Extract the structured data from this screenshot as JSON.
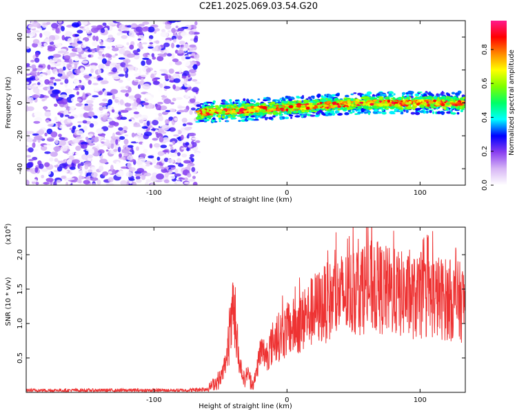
{
  "title": "C2E1.2025.069.03.54.G20",
  "chart_data": [
    {
      "type": "heatmap",
      "xlabel": "Height of straight line (km)",
      "ylabel": "Frequency (Hz)",
      "xlim": [
        -196,
        134
      ],
      "ylim": [
        -50,
        50
      ],
      "xticks": [
        -100,
        0,
        100
      ],
      "yticks": [
        -40,
        -20,
        0,
        20,
        40
      ],
      "colorbar": {
        "label": "Normalized spectral amplitude",
        "range": [
          0.0,
          0.97
        ],
        "ticks": [
          "0.0",
          "0.2",
          "0.4",
          "0.6",
          "0.8"
        ],
        "colors": [
          "#ffffff",
          "#d7b6f5",
          "#8a3ff0",
          "#0000ff",
          "#00ffff",
          "#00ff66",
          "#7fff00",
          "#ffff00",
          "#ff8800",
          "#ff0000",
          "#ff1a8c"
        ]
      },
      "regions": [
        {
          "x_range": [
            -196,
            -67
          ],
          "description": "broadband noise",
          "amplitude_range": [
            0.0,
            0.3
          ],
          "freq_range": [
            -50,
            50
          ]
        },
        {
          "x_range": [
            -67,
            134
          ],
          "description": "narrow signal band near 0 Hz",
          "center_freq_start": -6,
          "center_freq_end": 0,
          "band_half_width": 5,
          "peak_amplitude": 0.95
        }
      ]
    },
    {
      "type": "line",
      "color": "#ee3333",
      "xlabel": "Height of straight line (km)",
      "ylabel": "SNR (10 * v/v)",
      "y_multiplier": "(x10^4)",
      "xlim": [
        -196,
        134
      ],
      "ylim": [
        0,
        24000
      ],
      "xticks": [
        -100,
        0,
        100
      ],
      "yticks": [
        "0.5",
        "1.0",
        "1.5",
        "2.0"
      ],
      "series": [
        {
          "x": [
            -196,
            -150,
            -100,
            -75,
            -60,
            -50,
            -45,
            -40,
            -38,
            -35,
            -32,
            -30,
            -25,
            -20,
            -15,
            -10,
            0,
            10,
            20,
            30,
            40,
            50,
            60,
            70,
            80,
            90,
            100,
            110,
            120,
            134
          ],
          "y": [
            300,
            300,
            300,
            300,
            500,
            2000,
            5000,
            12000,
            7000,
            4000,
            1500,
            3000,
            1000,
            6000,
            5500,
            7500,
            9000,
            10000,
            12000,
            13000,
            14000,
            14500,
            15500,
            15000,
            14500,
            14000,
            13500,
            14000,
            13500,
            13000
          ]
        }
      ]
    }
  ]
}
